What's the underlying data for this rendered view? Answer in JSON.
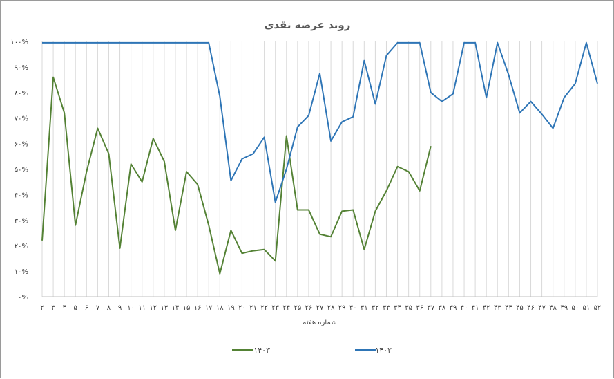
{
  "chart_data": {
    "type": "line",
    "title": "روند عرضه نقدی",
    "xlabel": "شماره هفته",
    "ylabel": "",
    "ylim": [
      0,
      100
    ],
    "y_ticks": [
      "۰%",
      "۱۰%",
      "۲۰%",
      "۳۰%",
      "۴۰%",
      "۵۰%",
      "۶۰%",
      "۷۰%",
      "۸۰%",
      "۹۰%",
      "۱۰۰%"
    ],
    "categories": [
      "۲",
      "۳",
      "۴",
      "۵",
      "۶",
      "۷",
      "۸",
      "۹",
      "۱۰",
      "۱۱",
      "۱۲",
      "۱۳",
      "۱۴",
      "۱۵",
      "۱۶",
      "۱۷",
      "۱۸",
      "۱۹",
      "۲۰",
      "۲۱",
      "۲۲",
      "۲۳",
      "۲۴",
      "۲۵",
      "۲۶",
      "۲۷",
      "۲۸",
      "۲۹",
      "۳۰",
      "۳۱",
      "۳۲",
      "۳۳",
      "۳۴",
      "۳۵",
      "۳۶",
      "۳۷",
      "۳۸",
      "۳۹",
      "۴۰",
      "۴۱",
      "۴۲",
      "۴۳",
      "۴۴",
      "۴۵",
      "۴۶",
      "۴۷",
      "۴۸",
      "۴۹",
      "۵۰",
      "۵۱",
      "۵۲"
    ],
    "series": [
      {
        "name": "۱۴۰۳",
        "color": "#548235",
        "values": [
          22,
          86,
          72,
          28,
          49,
          66,
          56,
          19,
          52,
          45,
          62,
          53,
          26,
          49,
          44,
          28,
          9,
          26,
          17,
          18,
          18.5,
          14,
          63,
          34,
          34,
          24.5,
          23.5,
          33.5,
          34,
          18.5,
          33.5,
          41.5,
          51,
          49,
          41.5,
          59,
          null,
          null,
          null,
          null,
          null,
          null,
          null,
          null,
          null,
          null,
          null,
          null,
          null,
          null,
          null
        ]
      },
      {
        "name": "۱۴۰۲",
        "color": "#2e75b6",
        "values": [
          99.5,
          99.5,
          99.5,
          99.5,
          99.5,
          99.5,
          99.5,
          99.5,
          99.5,
          99.5,
          99.5,
          99.5,
          99.5,
          99.5,
          99.5,
          99.5,
          78.5,
          45.5,
          54,
          56,
          62.5,
          37,
          50,
          66.5,
          71,
          87.5,
          61,
          68.5,
          70.5,
          92.5,
          75.5,
          94.5,
          99.5,
          99.5,
          99.5,
          80,
          76.5,
          79.5,
          99.5,
          99.5,
          78,
          99.5,
          87,
          72,
          76.5,
          71.5,
          66,
          78,
          83.5,
          99.5,
          83.5
        ]
      }
    ],
    "grid": "vertical",
    "legend_position": "bottom"
  }
}
